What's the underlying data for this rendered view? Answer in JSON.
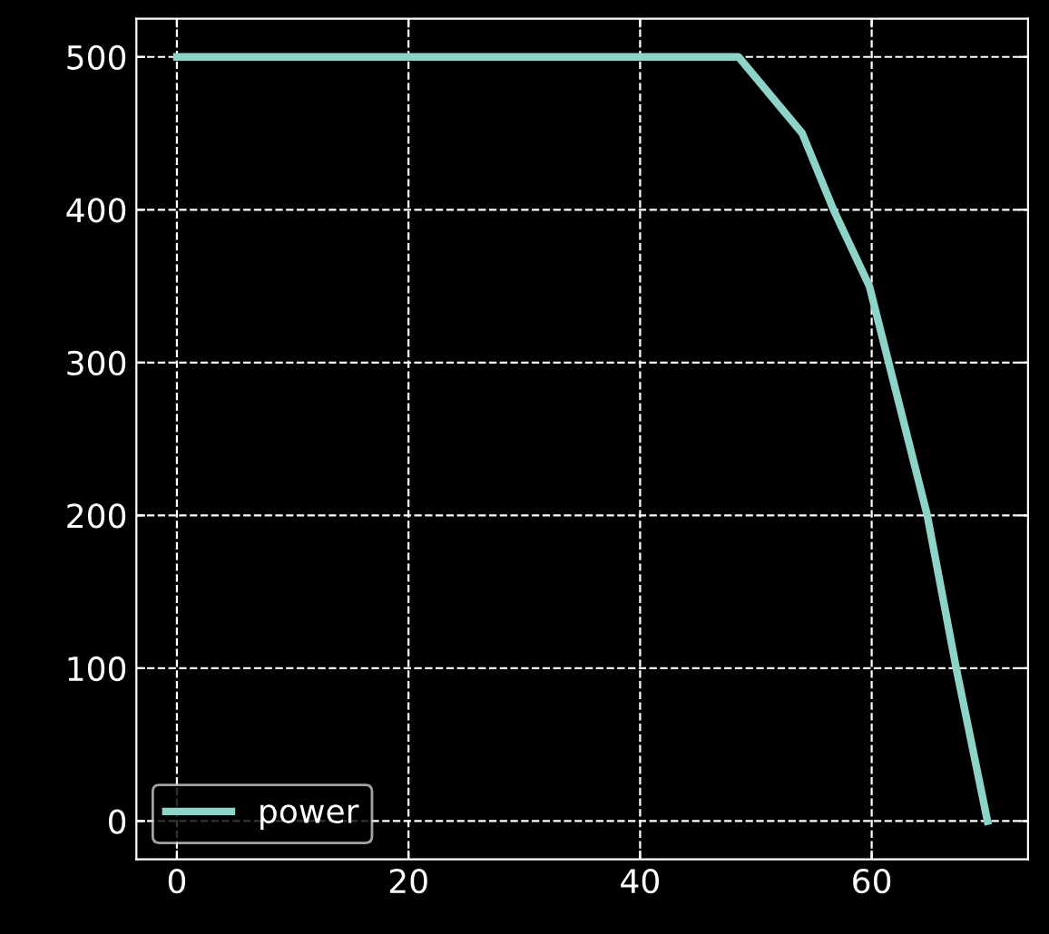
{
  "chart_data": {
    "type": "line",
    "x": [
      0,
      48.5,
      54,
      56.7,
      59.8,
      64.8,
      67.3,
      70
    ],
    "series": [
      {
        "name": "power",
        "color": "#8dd3c7",
        "values": [
          500,
          500,
          450,
          400,
          350,
          200,
          100,
          0
        ]
      }
    ],
    "xlim": [
      -3.5,
      73.5
    ],
    "ylim": [
      -25,
      525
    ],
    "xticks": [
      0,
      20,
      40,
      60
    ],
    "yticks": [
      0,
      100,
      200,
      300,
      400,
      500
    ],
    "grid": true,
    "legend": "bottom left",
    "line_style": "solid",
    "marker": "none"
  }
}
